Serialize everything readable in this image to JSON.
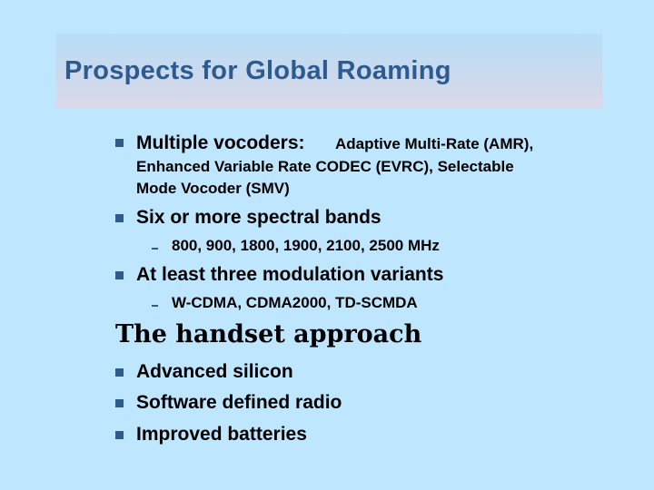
{
  "slide": {
    "title": "Prospects for Global Roaming",
    "items": [
      {
        "label": "Multiple vocoders:",
        "detail_lines": [
          "Adaptive Multi-Rate (AMR),",
          "Enhanced Variable Rate CODEC (EVRC), Selectable",
          "Mode Vocoder (SMV)"
        ]
      },
      {
        "label": "Six or more spectral bands",
        "sub": "800, 900, 1800, 1900, 2100, 2500  MHz"
      },
      {
        "label": "At least three modulation variants",
        "sub": "W-CDMA, CDMA2000, TD-SCMDA"
      }
    ],
    "section_heading": "The handset approach",
    "section_items": [
      "Advanced silicon",
      "Software defined radio",
      "Improved batteries"
    ]
  },
  "colors": {
    "background": "#bfe6ff",
    "title": "#2d5b8f",
    "bullet": "#2d5b8f"
  }
}
